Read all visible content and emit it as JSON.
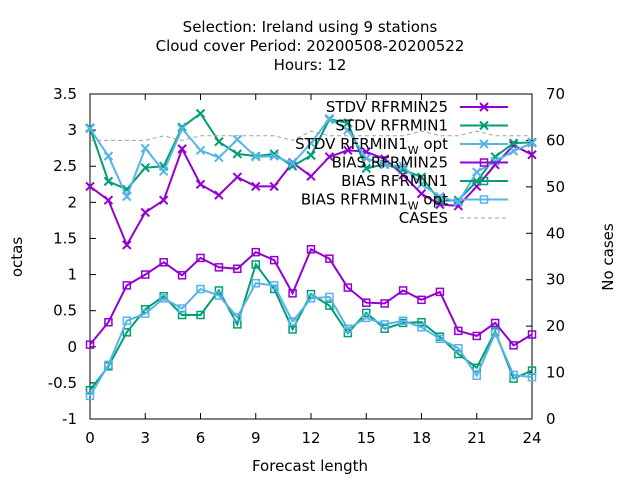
{
  "chart_data": {
    "type": "line",
    "title_lines": [
      "Selection: Ireland using      9 stations",
      "Cloud cover   Period: 20200508-20200522",
      "Hours:  12"
    ],
    "xlabel": "Forecast length",
    "ylabel": "octas",
    "y2label": "No cases",
    "xlim": [
      0,
      24
    ],
    "ylim": [
      -1,
      3.5
    ],
    "y2lim": [
      0,
      70
    ],
    "xticks": [
      "0",
      "3",
      "6",
      "9",
      "12",
      "15",
      "18",
      "21",
      "24"
    ],
    "yticks": [
      "-1",
      "-0.5",
      "0",
      "0.5",
      "1",
      "1.5",
      "2",
      "2.5",
      "3",
      "3.5"
    ],
    "y2ticks": [
      "0",
      "10",
      "20",
      "30",
      "40",
      "50",
      "60",
      "70"
    ],
    "grid": false,
    "legend_position": "top-right",
    "x": [
      0,
      1,
      2,
      3,
      4,
      5,
      6,
      7,
      8,
      9,
      10,
      11,
      12,
      13,
      14,
      15,
      16,
      17,
      18,
      19,
      20,
      21,
      22,
      23,
      24
    ],
    "series": [
      {
        "name": "STDV RFRMIN25",
        "name_parts": [
          "STDV RFRMIN25",
          ""
        ],
        "color": "#9400d3",
        "marker": "x",
        "axis": "y1",
        "values": [
          2.22,
          2.03,
          1.41,
          1.86,
          2.03,
          2.74,
          2.25,
          2.1,
          2.35,
          2.22,
          2.22,
          2.55,
          2.36,
          2.63,
          2.72,
          2.7,
          2.6,
          2.38,
          2.12,
          1.97,
          1.95,
          2.22,
          2.52,
          2.79,
          2.66
        ]
      },
      {
        "name": "STDV RFRMIN1",
        "name_parts": [
          "STDV RFRMIN1",
          ""
        ],
        "color": "#009e73",
        "marker": "x",
        "axis": "y1",
        "values": [
          3.03,
          2.29,
          2.18,
          2.48,
          2.5,
          3.04,
          3.23,
          2.84,
          2.67,
          2.64,
          2.67,
          2.5,
          2.65,
          3.15,
          3.1,
          2.47,
          2.53,
          2.45,
          2.35,
          2.02,
          2.03,
          2.29,
          2.63,
          2.82,
          2.83
        ]
      },
      {
        "name": "STDV RFRMIN1_W opt",
        "name_parts": [
          "STDV RFRMIN1",
          "W",
          " opt"
        ],
        "color": "#56b4e9",
        "marker": "x",
        "axis": "y1",
        "values": [
          3.02,
          2.64,
          2.08,
          2.75,
          2.43,
          3.02,
          2.72,
          2.62,
          2.87,
          2.63,
          2.64,
          2.54,
          2.82,
          3.16,
          3.0,
          2.61,
          2.52,
          2.5,
          2.25,
          2.08,
          2.0,
          2.42,
          2.57,
          2.71,
          2.82
        ]
      },
      {
        "name": "BIAS RFRMIN25",
        "name_parts": [
          "BIAS RFRMIN25",
          ""
        ],
        "color": "#9400d3",
        "marker": "square",
        "axis": "y1",
        "values": [
          0.03,
          0.34,
          0.85,
          1.0,
          1.17,
          0.99,
          1.23,
          1.1,
          1.08,
          1.31,
          1.2,
          0.74,
          1.35,
          1.22,
          0.82,
          0.61,
          0.6,
          0.78,
          0.65,
          0.76,
          0.22,
          0.15,
          0.33,
          0.02,
          0.17
        ]
      },
      {
        "name": "BIAS RFRMIN1",
        "name_parts": [
          "BIAS RFRMIN1",
          ""
        ],
        "color": "#009e73",
        "marker": "square",
        "axis": "y1",
        "values": [
          -0.6,
          -0.27,
          0.2,
          0.52,
          0.7,
          0.44,
          0.44,
          0.78,
          0.31,
          1.14,
          0.8,
          0.24,
          0.73,
          0.57,
          0.19,
          0.47,
          0.25,
          0.33,
          0.34,
          0.14,
          -0.1,
          -0.29,
          0.21,
          -0.44,
          -0.33
        ]
      },
      {
        "name": "BIAS RFRMIN1_W opt",
        "name_parts": [
          "BIAS RFRMIN1",
          "W",
          " opt"
        ],
        "color": "#56b4e9",
        "marker": "square",
        "axis": "y1",
        "values": [
          -0.68,
          -0.25,
          0.36,
          0.46,
          0.67,
          0.53,
          0.8,
          0.71,
          0.41,
          0.88,
          0.85,
          0.35,
          0.67,
          0.69,
          0.25,
          0.4,
          0.31,
          0.36,
          0.27,
          0.11,
          -0.02,
          -0.4,
          0.19,
          -0.39,
          -0.42
        ]
      },
      {
        "name": "CASES",
        "name_parts": [
          "CASES",
          ""
        ],
        "color": "#a0a0a0",
        "marker": "none",
        "dashed": true,
        "axis": "y2",
        "values": [
          60,
          60,
          60,
          60,
          61,
          60,
          61,
          61,
          61,
          61,
          61,
          60,
          62,
          61,
          61,
          61,
          61,
          61,
          62,
          61,
          61,
          62,
          61,
          61,
          61
        ]
      }
    ]
  }
}
